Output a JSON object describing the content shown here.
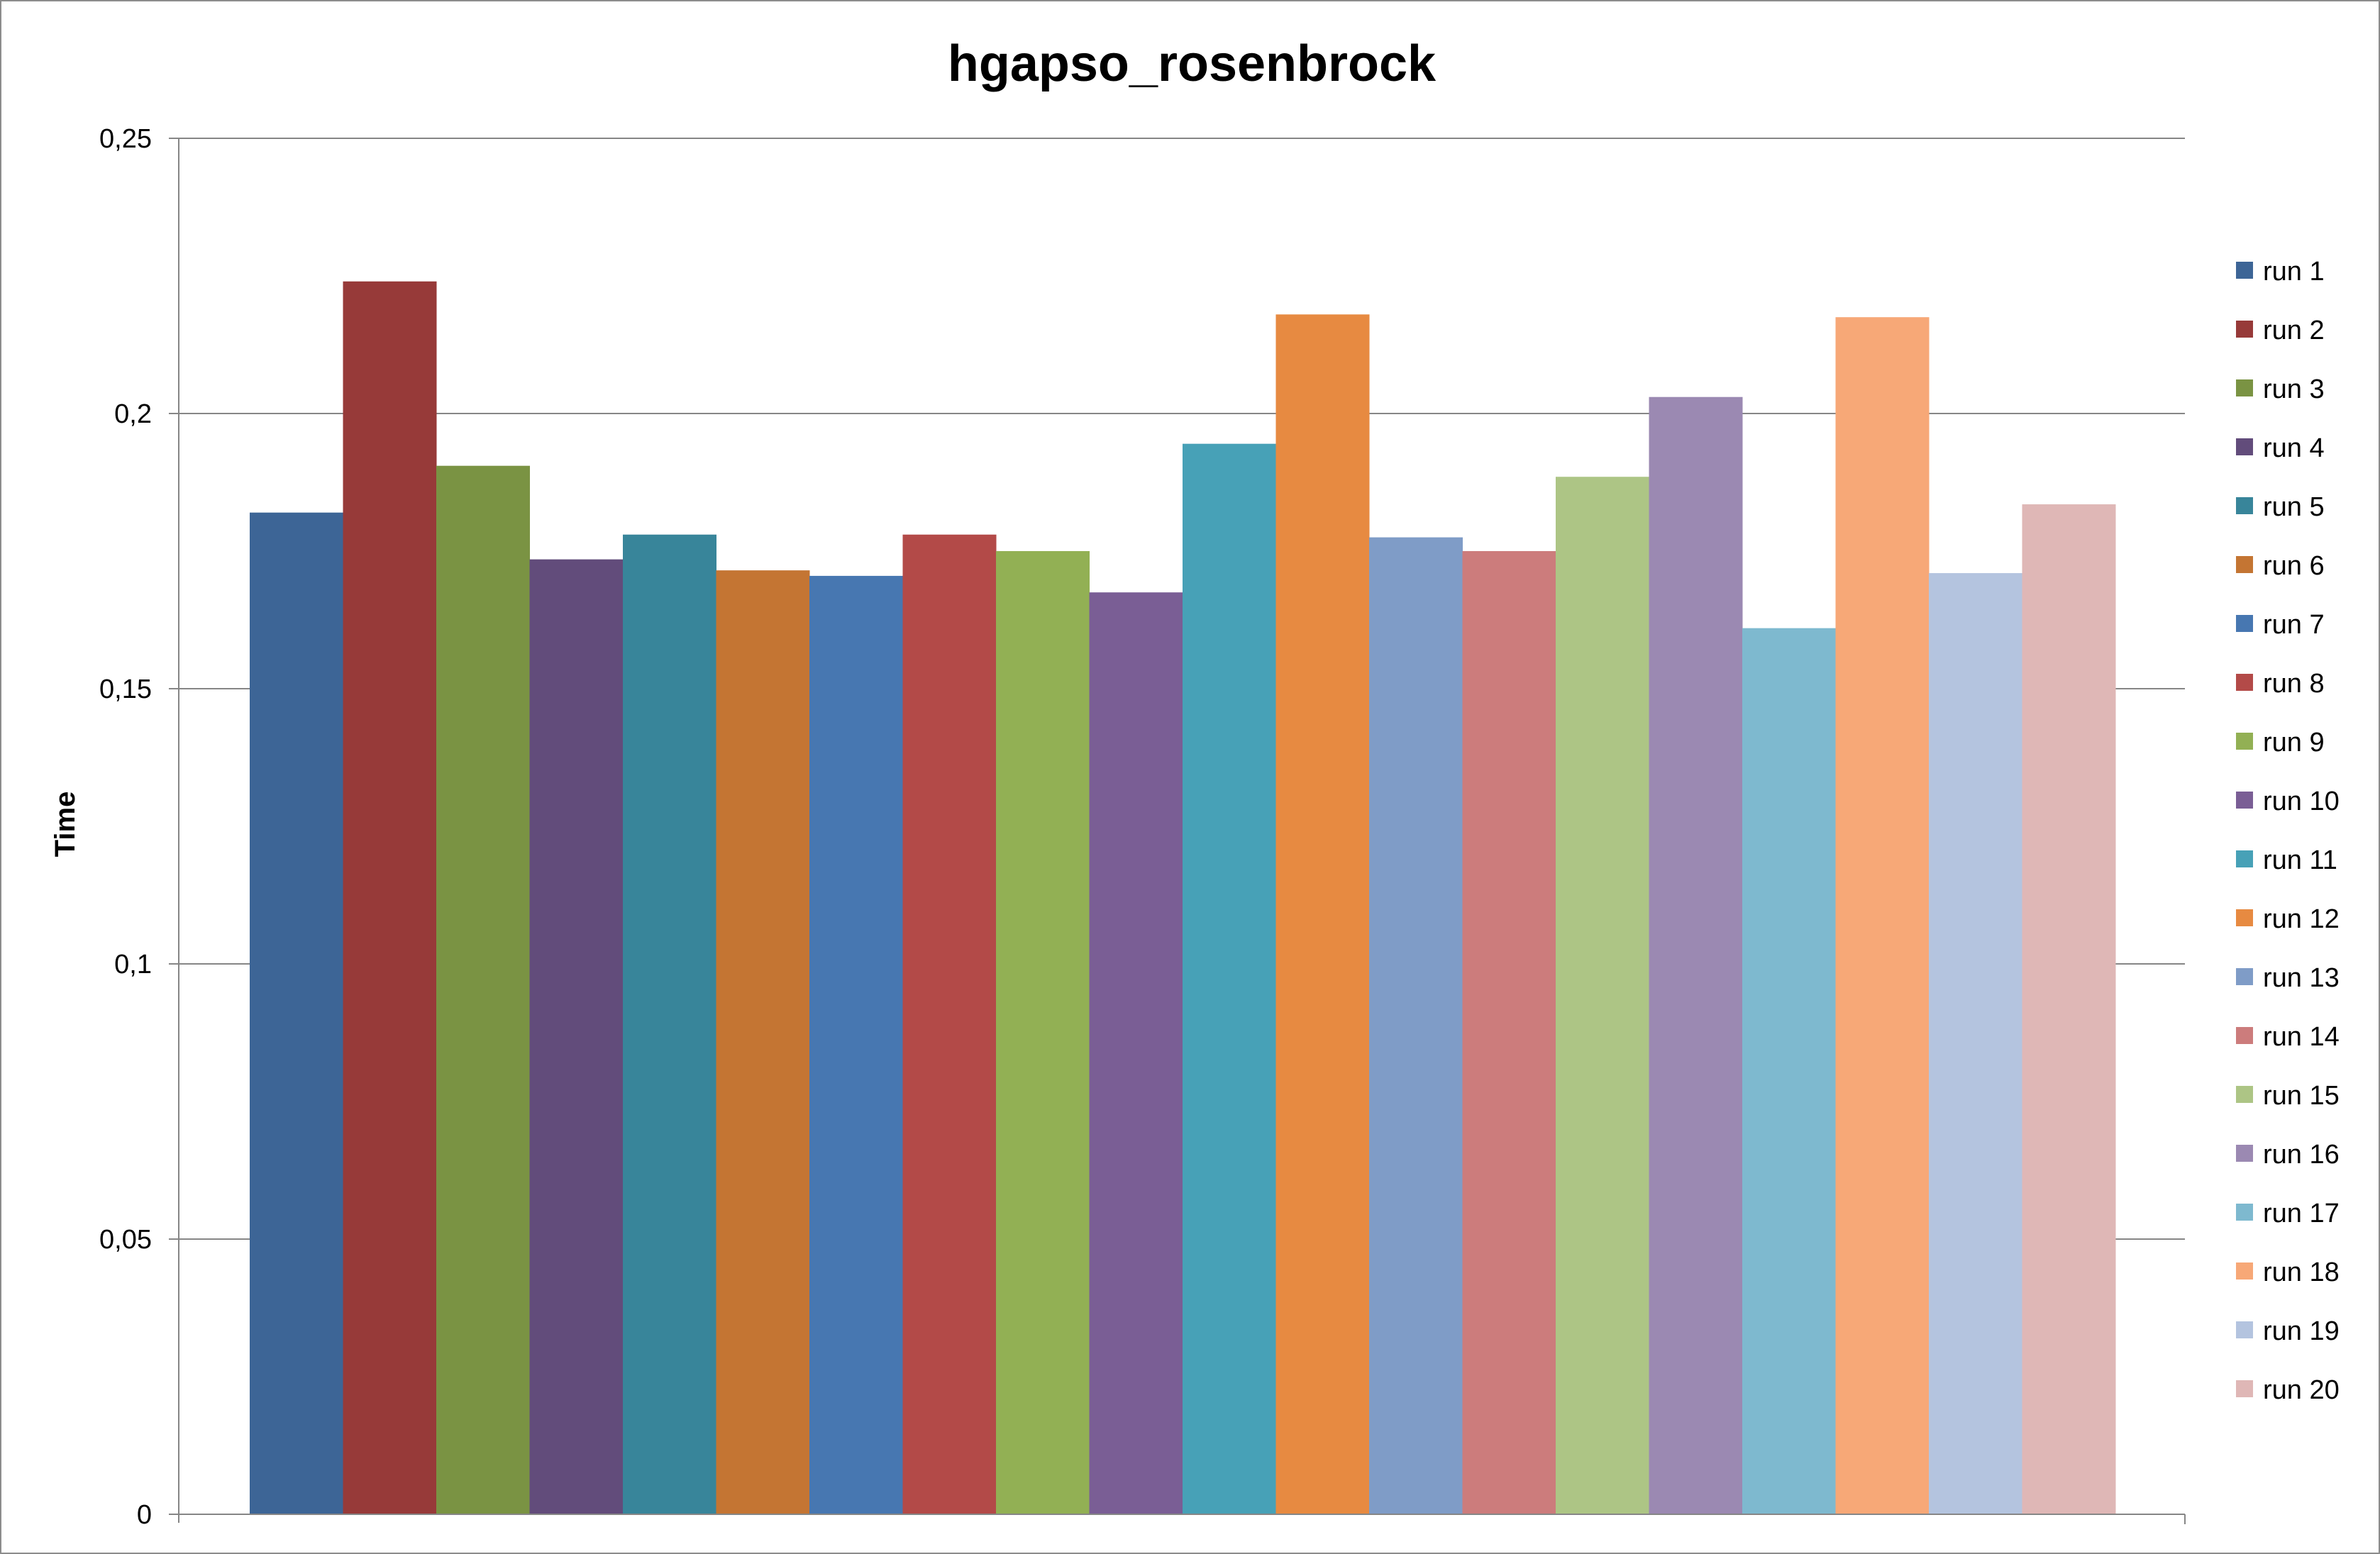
{
  "chart_data": {
    "type": "bar",
    "title": "hgapso_rosenbrock",
    "xlabel": "",
    "ylabel": "Time",
    "ylim": [
      0,
      0.25
    ],
    "yticks": [
      0,
      0.05,
      0.1,
      0.15,
      0.2,
      0.25
    ],
    "ytick_labels": [
      "0",
      "0,05",
      "0,1",
      "0,15",
      "0,2",
      "0,25"
    ],
    "grid": true,
    "legend_position": "right",
    "categories": [
      ""
    ],
    "series": [
      {
        "name": "run 1",
        "values": [
          0.182
        ],
        "color": "#3D6596"
      },
      {
        "name": "run 2",
        "values": [
          0.224
        ],
        "color": "#973A39"
      },
      {
        "name": "run 3",
        "values": [
          0.1905
        ],
        "color": "#7A9343"
      },
      {
        "name": "run 4",
        "values": [
          0.1735
        ],
        "color": "#624C7B"
      },
      {
        "name": "run 5",
        "values": [
          0.178
        ],
        "color": "#38859A"
      },
      {
        "name": "run 6",
        "values": [
          0.1715
        ],
        "color": "#C47533"
      },
      {
        "name": "run 7",
        "values": [
          0.1705
        ],
        "color": "#4777B1"
      },
      {
        "name": "run 8",
        "values": [
          0.178
        ],
        "color": "#B34A48"
      },
      {
        "name": "run 9",
        "values": [
          0.175
        ],
        "color": "#92B054"
      },
      {
        "name": "run 10",
        "values": [
          0.1675
        ],
        "color": "#7A5E95"
      },
      {
        "name": "run 11",
        "values": [
          0.1945
        ],
        "color": "#47A1B7"
      },
      {
        "name": "run 12",
        "values": [
          0.218
        ],
        "color": "#E78A41"
      },
      {
        "name": "run 13",
        "values": [
          0.1775
        ],
        "color": "#7F9CC7"
      },
      {
        "name": "run 14",
        "values": [
          0.175
        ],
        "color": "#CC7C7C"
      },
      {
        "name": "run 15",
        "values": [
          0.1885
        ],
        "color": "#ADC585"
      },
      {
        "name": "run 16",
        "values": [
          0.203
        ],
        "color": "#9B89B2"
      },
      {
        "name": "run 17",
        "values": [
          0.161
        ],
        "color": "#7EB9CF"
      },
      {
        "name": "run 18",
        "values": [
          0.2175
        ],
        "color": "#F7A877"
      },
      {
        "name": "run 19",
        "values": [
          0.171
        ],
        "color": "#B4C4DF"
      },
      {
        "name": "run 20",
        "values": [
          0.1835
        ],
        "color": "#DFB7B6"
      }
    ]
  }
}
